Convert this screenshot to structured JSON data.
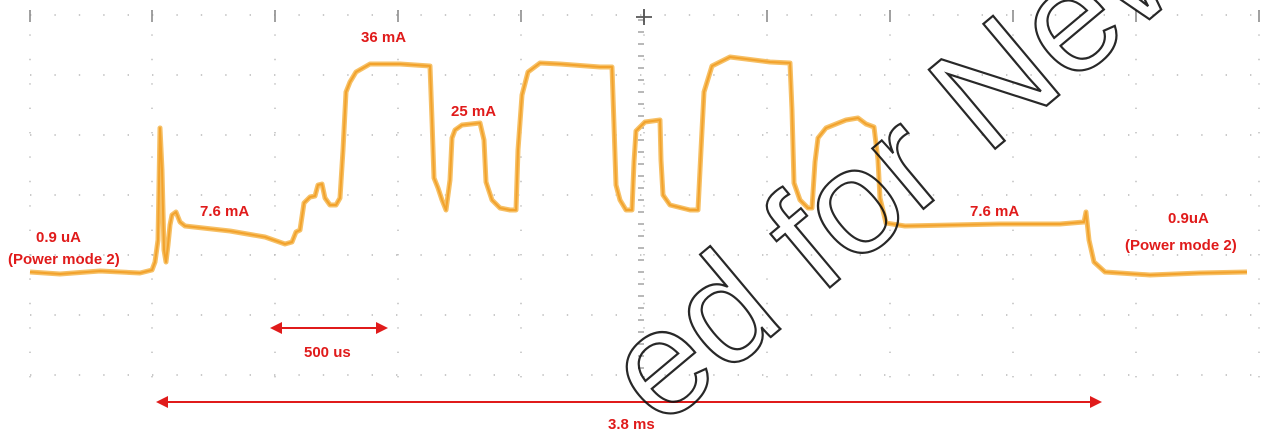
{
  "chart_data": {
    "type": "line",
    "title": "",
    "xlabel": "",
    "ylabel": "",
    "grid": true,
    "grid_style": "dotted",
    "background": "#ffffff",
    "trace_color": "#f2a22c",
    "label_color": "#e01b1b",
    "annotations": {
      "sleep_left": "0.9 uA",
      "sleep_left_mode": "(Power mode 2)",
      "active_left": "7.6 mA",
      "peak": "36 mA",
      "mid": "25 mA",
      "active_right": "7.6 mA",
      "sleep_right": "0.9uA",
      "sleep_right_mode": "(Power mode 2)",
      "scale_500": "500 us",
      "scale_total": "3.8 ms"
    },
    "watermark": "ed for New"
  }
}
